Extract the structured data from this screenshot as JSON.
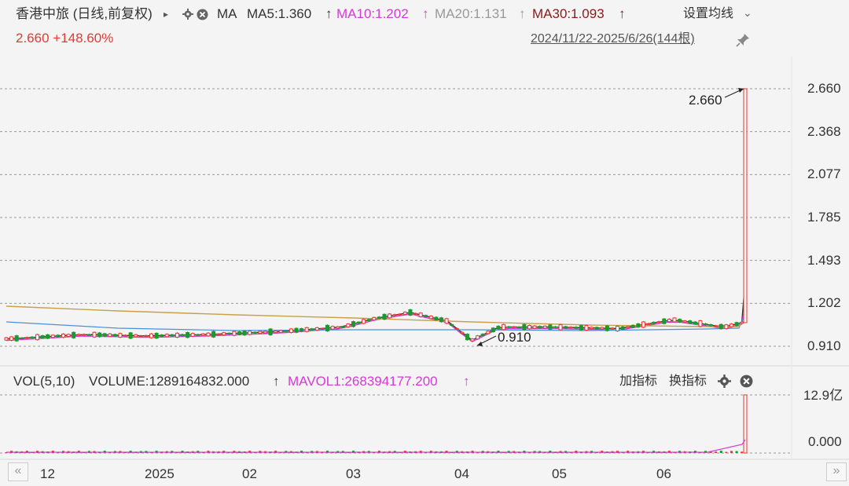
{
  "header": {
    "stock_title": "香港中旅 (日线,前复权)",
    "arrow": "▸",
    "indicator": "MA",
    "ma5_label": "MA5:1.360",
    "ma10_label": "MA10:1.202",
    "ma20_label": "MA20:1.131",
    "ma30_label": "MA30:1.093",
    "up_arrow": "↑",
    "settings_label": "设置均线",
    "settings_chevron": "⌄",
    "price_change": "2.660 +148.60%",
    "date_range": "2024/11/22-2025/6/26(144根)"
  },
  "volume_header": {
    "vol_label": "VOL(5,10)",
    "volume_label": "VOLUME:1289164832.000",
    "mavol_label": "MAVOL1:268394177.200",
    "up_arrow": "↑",
    "add_indicator": "加指标",
    "switch_indicator": "换指标"
  },
  "price_axis": [
    "2.660",
    "2.368",
    "2.077",
    "1.785",
    "1.493",
    "1.202",
    "0.910"
  ],
  "volume_axis": [
    "12.9亿",
    "0.000"
  ],
  "x_axis": [
    "12",
    "2025",
    "02",
    "03",
    "04",
    "05",
    "06"
  ],
  "nav": {
    "prev": "«",
    "next": "»"
  },
  "colors": {
    "ma5": "#333333",
    "ma10": "#d53ad6",
    "ma20": "#4a90d9",
    "ma30": "#c9a04a",
    "up": "#e53935",
    "down": "#1a9a2a",
    "axis_text": "#333333",
    "mavol": "#d53ad6",
    "change": "#e53935"
  },
  "chart_data": {
    "type": "candlestick",
    "ylim": [
      0.91,
      2.66
    ],
    "high_annotation": "2.660",
    "low_annotation": "0.910",
    "close_series": [
      {
        "date": "2024-11-22",
        "close": 0.96
      },
      {
        "date": "2024-12-15",
        "close": 0.99
      },
      {
        "date": "2025-01-02",
        "close": 0.98
      },
      {
        "date": "2025-01-20",
        "close": 0.99
      },
      {
        "date": "2025-02-10",
        "close": 1.01
      },
      {
        "date": "2025-02-28",
        "close": 1.04
      },
      {
        "date": "2025-03-10",
        "close": 1.1
      },
      {
        "date": "2025-03-20",
        "close": 1.14
      },
      {
        "date": "2025-03-31",
        "close": 1.08
      },
      {
        "date": "2025-04-07",
        "close": 0.95
      },
      {
        "date": "2025-04-15",
        "close": 1.04
      },
      {
        "date": "2025-05-01",
        "close": 1.04
      },
      {
        "date": "2025-05-20",
        "close": 1.03
      },
      {
        "date": "2025-06-05",
        "close": 1.09
      },
      {
        "date": "2025-06-20",
        "close": 1.04
      },
      {
        "date": "2025-06-25",
        "close": 1.07
      },
      {
        "date": "2025-06-26",
        "close": 2.66
      }
    ],
    "ma_series": [
      {
        "name": "MA5",
        "last": 1.36
      },
      {
        "name": "MA10",
        "last": 1.202
      },
      {
        "name": "MA20",
        "last": 1.131
      },
      {
        "name": "MA30",
        "last": 1.093
      }
    ],
    "volume_last": 1289164832,
    "mavol_last": 268394177.2
  }
}
